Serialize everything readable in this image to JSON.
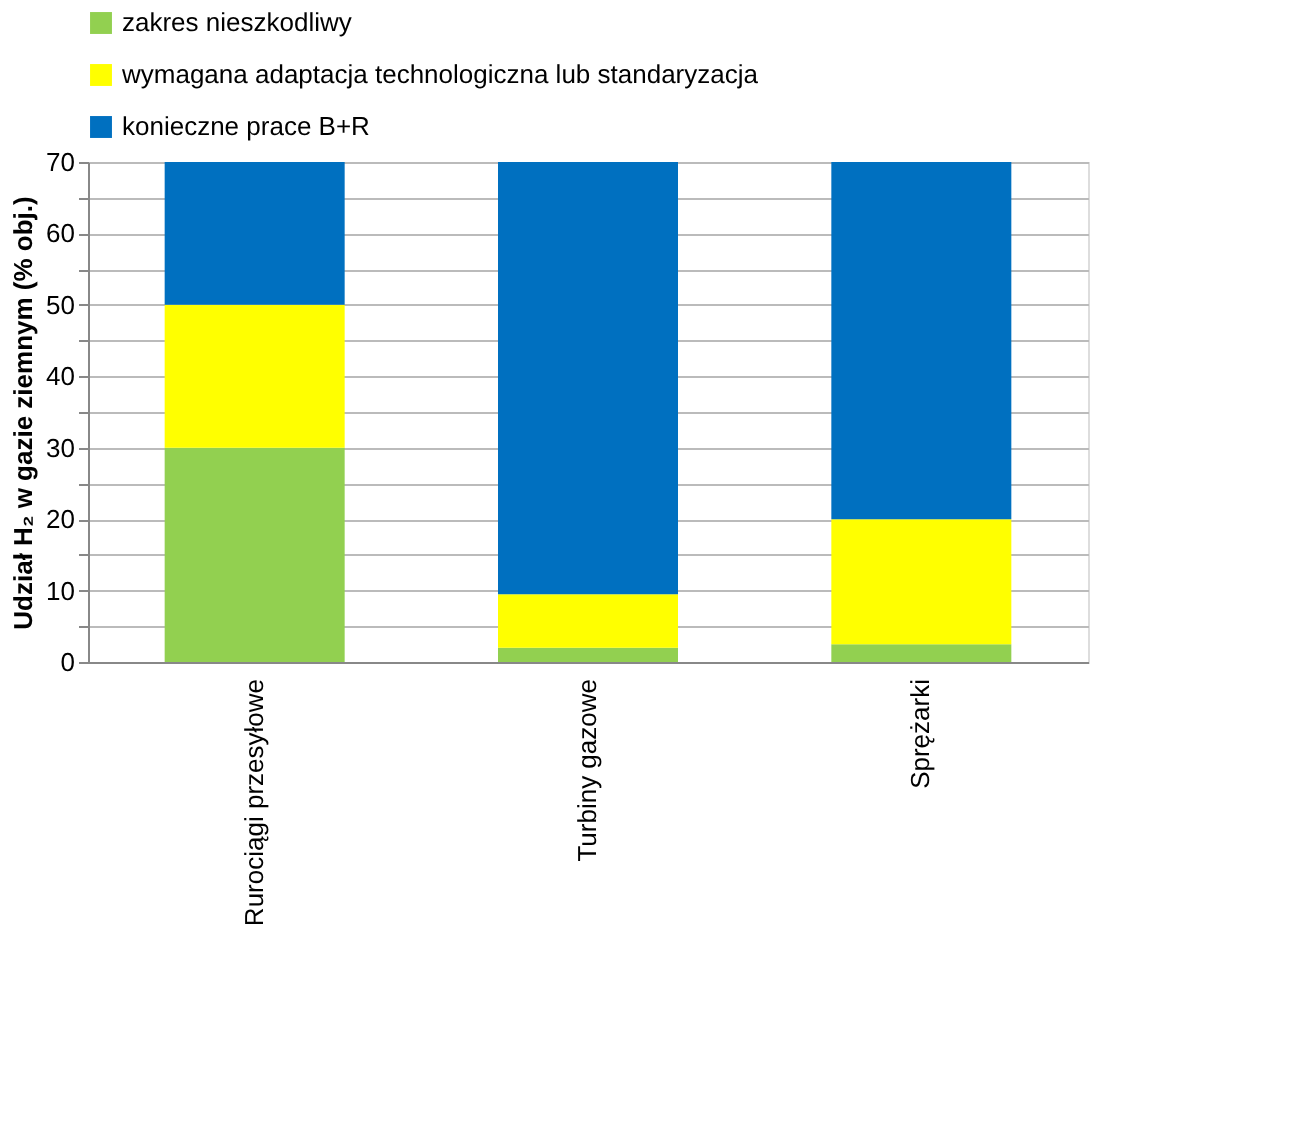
{
  "chart_data": {
    "type": "bar",
    "stacked": true,
    "ylabel": "Udział H₂ w gazie ziemnym (% obj.)",
    "categories": [
      "Rurociągi przesyłowe",
      "Turbiny gazowe",
      "Sprężarki"
    ],
    "series": [
      {
        "name": "zakres nieszkodliwy",
        "color": "#92d050",
        "values": [
          30,
          2,
          2.5
        ]
      },
      {
        "name": "wymagana adaptacja technologiczna lub standaryzacja",
        "color": "#ffff00",
        "values": [
          20,
          7.5,
          17.5
        ]
      },
      {
        "name": "konieczne prace B+R",
        "color": "#0070c0",
        "values": [
          20,
          60.5,
          50
        ]
      }
    ],
    "ylim": [
      0,
      70
    ],
    "yticks": [
      0,
      {
        "value": 5,
        "label": null
      },
      10,
      {
        "value": 15,
        "label": null
      },
      20,
      {
        "value": 25,
        "label": null
      },
      30,
      {
        "value": 35,
        "label": null
      },
      40,
      {
        "value": 45,
        "label": null
      },
      50,
      {
        "value": 55,
        "label": null
      },
      60,
      {
        "value": 65,
        "label": null
      },
      70
    ],
    "grid": "y",
    "legend": "top"
  }
}
